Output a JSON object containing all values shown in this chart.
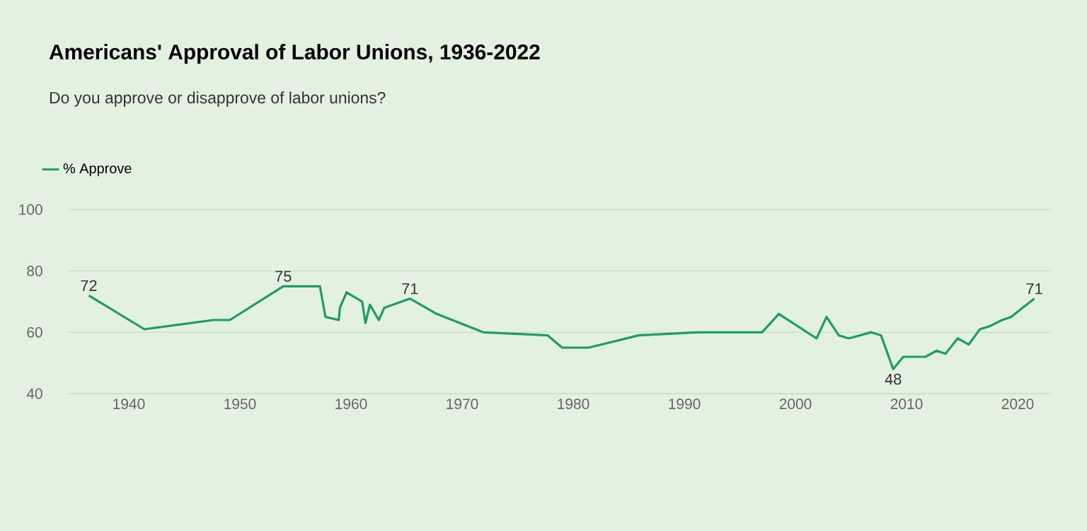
{
  "chart_data": {
    "type": "line",
    "title": "Americans' Approval of Labor Unions, 1936-2022",
    "subtitle": "Do you approve or disapprove of labor unions?",
    "x": [
      1936.4,
      1941.4,
      1947.6,
      1949.1,
      1953.9,
      1957.2,
      1957.7,
      1958.9,
      1959.0,
      1959.6,
      1961.0,
      1961.3,
      1961.7,
      1962.5,
      1963.0,
      1965.3,
      1967.7,
      1971.9,
      1977.7,
      1979.0,
      1981.4,
      1985.9,
      1991.2,
      1997.0,
      1998.5,
      2001.9,
      2002.8,
      2003.9,
      2004.8,
      2006.8,
      2007.7,
      2008.8,
      2009.7,
      2011.7,
      2012.7,
      2013.5,
      2014.6,
      2015.6,
      2016.6,
      2017.5,
      2018.6,
      2019.4,
      2021.5
    ],
    "series": [
      {
        "name": "% Approve",
        "color": "#1e9e5c",
        "values": [
          72,
          61,
          64,
          64,
          75,
          75,
          65,
          64,
          68,
          73,
          70,
          63,
          69,
          64,
          68,
          71,
          66,
          60,
          59,
          55,
          55,
          59,
          60,
          60,
          66,
          58,
          65,
          59,
          58,
          60,
          59,
          48,
          52,
          52,
          54,
          53,
          58,
          56,
          61,
          62,
          64,
          65,
          71
        ]
      }
    ],
    "annotations": [
      {
        "text": "72",
        "x": 1936.4,
        "y": 72
      },
      {
        "text": "75",
        "x": 1953.9,
        "y": 75
      },
      {
        "text": "71",
        "x": 1965.3,
        "y": 71
      },
      {
        "text": "48",
        "x": 2008.8,
        "y": 48
      },
      {
        "text": "71",
        "x": 2021.5,
        "y": 71
      }
    ],
    "xlim": [
      1934.5,
      2023
    ],
    "ylim": [
      40,
      100
    ],
    "xticks": [
      1940,
      1950,
      1960,
      1970,
      1980,
      1990,
      2000,
      2010,
      2020
    ],
    "yticks": [
      40,
      60,
      80,
      100
    ],
    "grid": "y",
    "legend": "top left",
    "tick_labels": "xy",
    "marker": "none",
    "line_style": "solid"
  }
}
